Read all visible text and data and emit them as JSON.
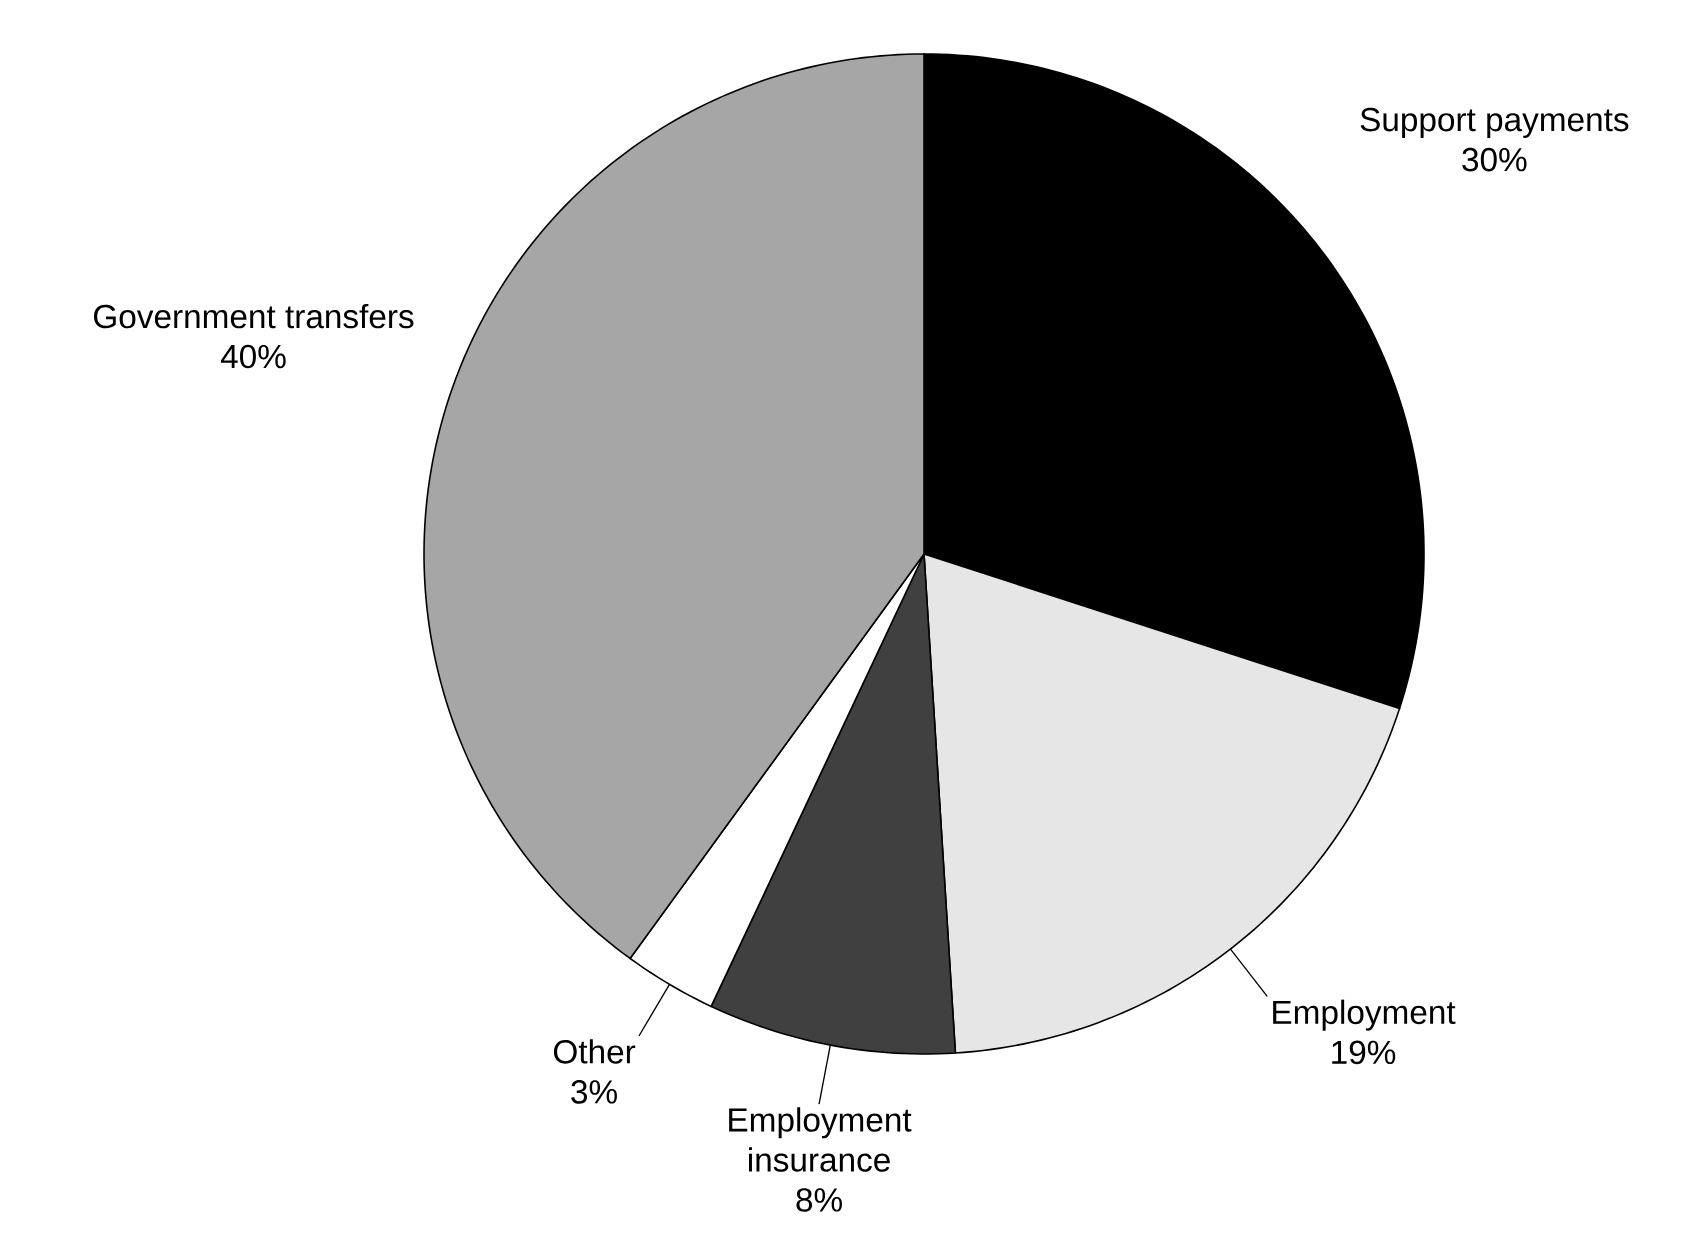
{
  "chart_data": {
    "type": "pie",
    "categories": [
      "Support payments",
      "Employment",
      "Employment insurance",
      "Other",
      "Government transfers"
    ],
    "values": [
      30,
      19,
      8,
      3,
      40
    ],
    "value_labels": [
      "30%",
      "19%",
      "8%",
      "3%",
      "40%"
    ],
    "colors": [
      "#000000",
      "#e6e6e6",
      "#404040",
      "#ffffff",
      "#a6a6a6"
    ],
    "legend": false
  }
}
